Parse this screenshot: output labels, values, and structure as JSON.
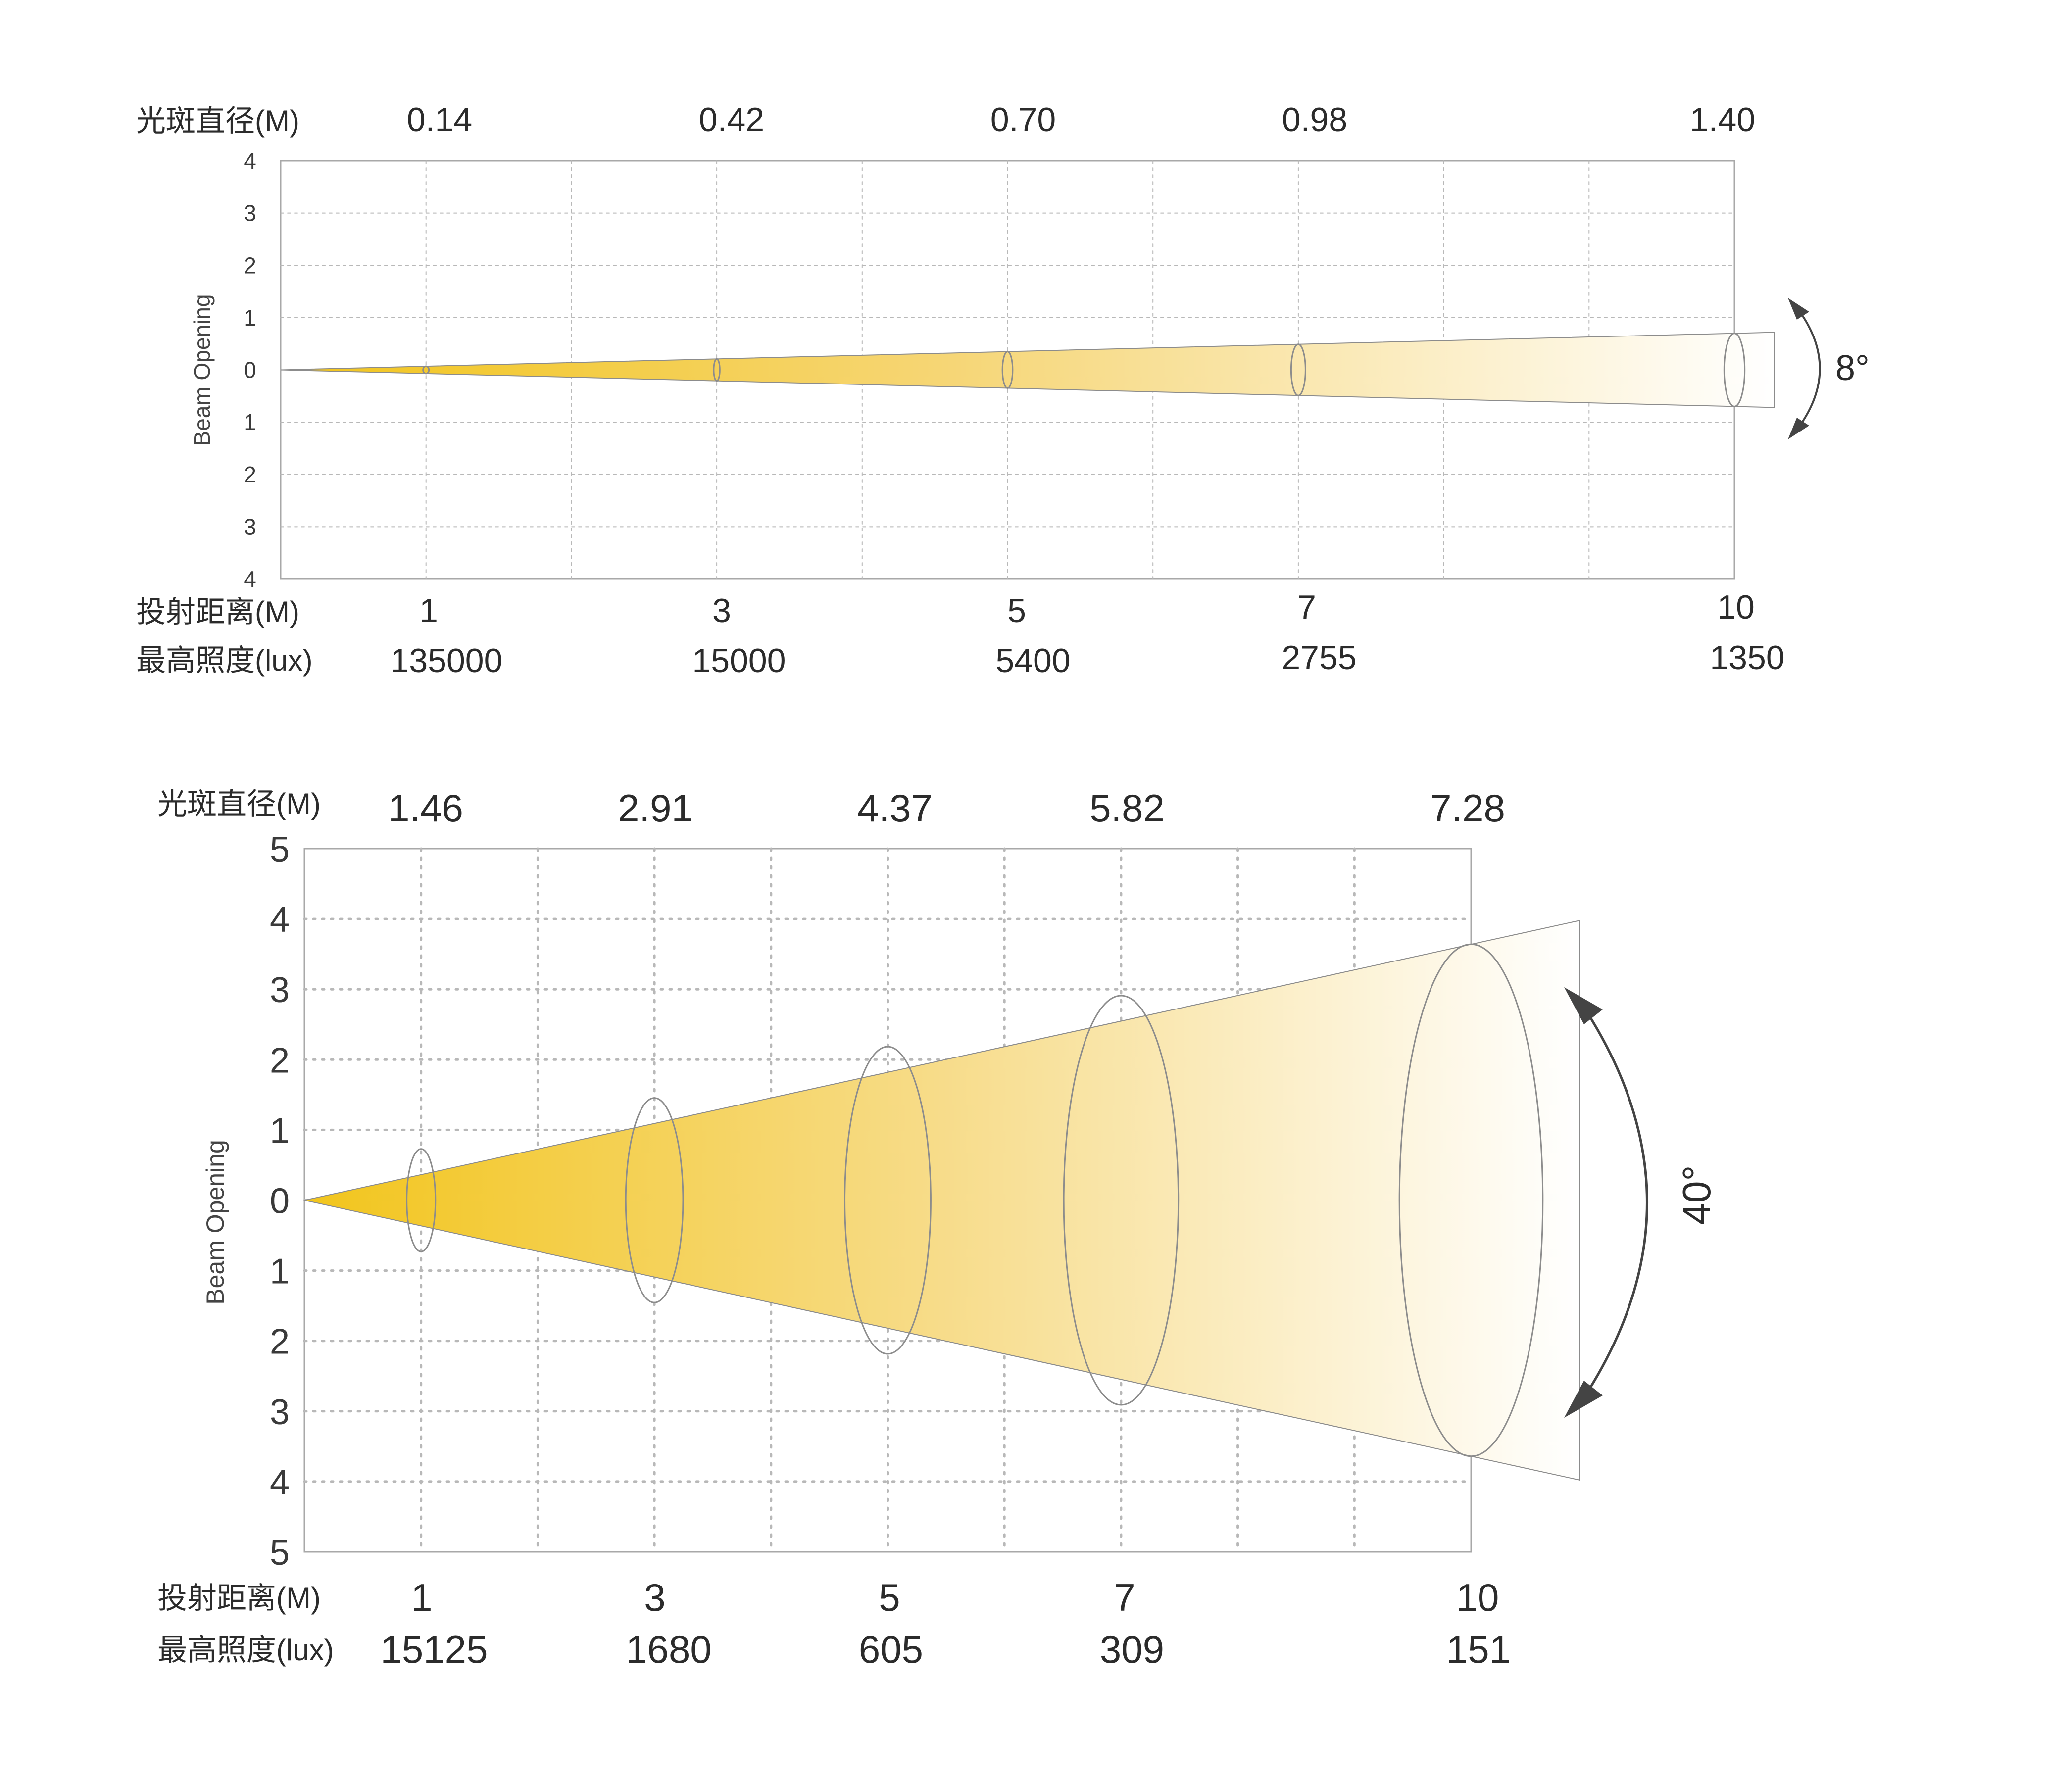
{
  "chart_data": [
    {
      "type": "beam-spread",
      "beam_angle_label": "8°",
      "y_axis_label": "Beam Opening",
      "y_tick_labels": [
        "4",
        "3",
        "2",
        "1",
        "0",
        "1",
        "2",
        "3",
        "4"
      ],
      "ylim": [
        -4,
        4
      ],
      "xlim": [
        0,
        10
      ],
      "diameter_row_label": "光斑直径(M)",
      "distance_row_label": "投射距离(M)",
      "illuminance_row_label": "最高照度(lux)",
      "distances": [
        "1",
        "3",
        "5",
        "7",
        "10"
      ],
      "distance_values": [
        1,
        3,
        5,
        7,
        10
      ],
      "diameters": [
        "0.14",
        "0.42",
        "0.70",
        "0.98",
        "1.40"
      ],
      "diameter_values": [
        0.14,
        0.42,
        0.7,
        0.98,
        1.4
      ],
      "illuminance": [
        "135000",
        "15000",
        "5400",
        "2755",
        "1350"
      ],
      "illuminance_values": [
        135000,
        15000,
        5400,
        2755,
        1350
      ]
    },
    {
      "type": "beam-spread",
      "beam_angle_label": "40°",
      "y_axis_label": "Beam Opening",
      "y_tick_labels": [
        "5",
        "4",
        "3",
        "2",
        "1",
        "0",
        "1",
        "2",
        "3",
        "4",
        "5"
      ],
      "ylim": [
        -5,
        5
      ],
      "xlim": [
        0,
        10
      ],
      "diameter_row_label": "光斑直径(M)",
      "distance_row_label": "投射距离(M)",
      "illuminance_row_label": "最高照度(lux)",
      "distances": [
        "1",
        "3",
        "5",
        "7",
        "10"
      ],
      "distance_values": [
        1,
        3,
        5,
        7,
        10
      ],
      "diameters": [
        "1.46",
        "2.91",
        "4.37",
        "5.82",
        "7.28"
      ],
      "diameter_values": [
        1.46,
        2.91,
        4.37,
        5.82,
        7.28
      ],
      "illuminance": [
        "15125",
        "1680",
        "605",
        "309",
        "151"
      ],
      "illuminance_values": [
        15125,
        1680,
        605,
        309,
        151
      ]
    }
  ],
  "colors": {
    "beam_start": "#f2c51c",
    "beam_end": "#ffffff",
    "grid": "#b8b8b8",
    "axis": "#9a9a9a",
    "outline": "#8c8c8c",
    "arrow": "#444444"
  }
}
